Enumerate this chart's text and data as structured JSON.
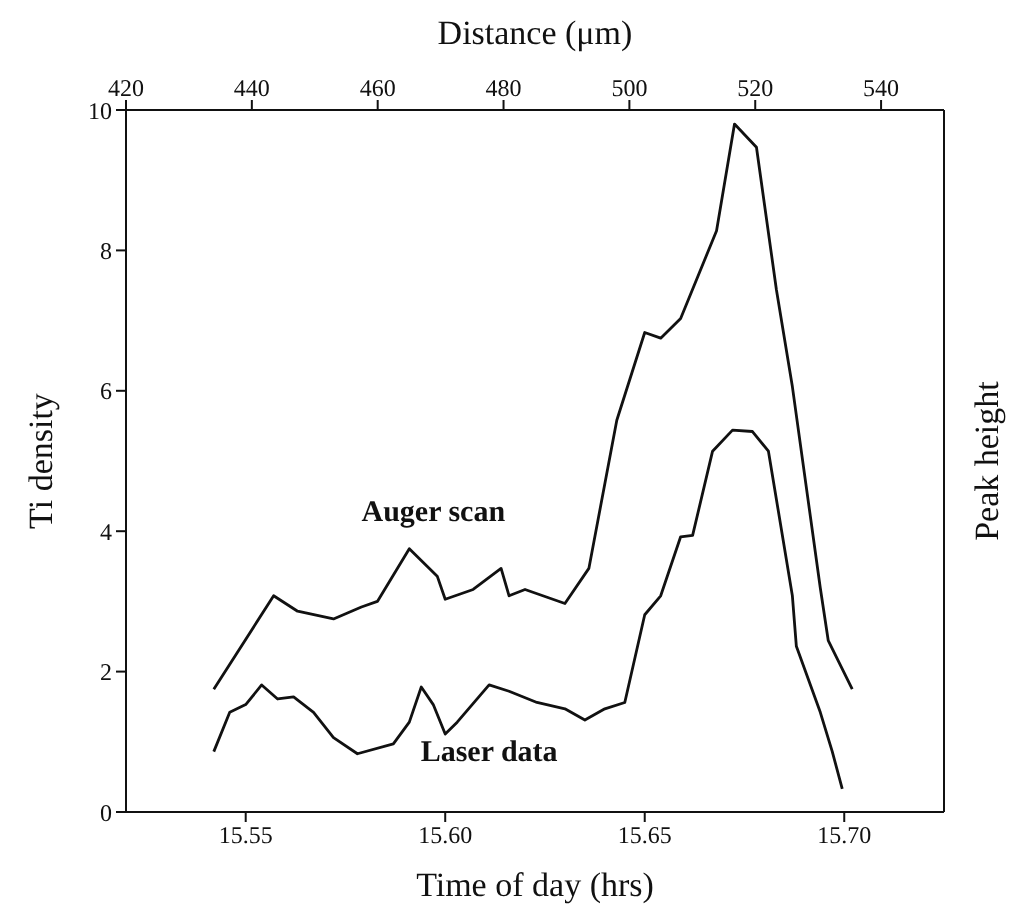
{
  "chart_data": {
    "type": "line",
    "xlabel": "Time of day (hrs)",
    "x2label": "Distance (μm)",
    "ylabel": "Ti density",
    "y2label": "Peak height",
    "xlim": [
      15.52,
      15.725
    ],
    "xticks": [
      15.55,
      {
        "value": 15.6,
        "label": "15.60"
      },
      15.65,
      {
        "value": 15.7,
        "label": "15.70"
      }
    ],
    "x2lim": [
      420,
      550
    ],
    "x2ticks": [
      420,
      440,
      460,
      480,
      500,
      520,
      540
    ],
    "ylim": [
      0,
      10
    ],
    "yticks": [
      0,
      2,
      4,
      6,
      8,
      10
    ],
    "grid": false,
    "legend": false,
    "marker": "none",
    "line_style": "solid",
    "series": [
      {
        "name": "Auger scan",
        "color": "#111111",
        "x": [
          15.542,
          15.557,
          15.563,
          15.572,
          15.579,
          15.583,
          15.591,
          15.598,
          15.6,
          15.607,
          15.614,
          15.616,
          15.62,
          15.63,
          15.636,
          15.643,
          15.65,
          15.654,
          15.659,
          15.668,
          15.6725,
          15.678,
          15.683,
          15.687,
          15.694,
          15.696,
          15.702
        ],
        "values": [
          1.75,
          3.08,
          2.86,
          2.75,
          2.92,
          3.0,
          3.75,
          3.36,
          3.03,
          3.17,
          3.47,
          3.08,
          3.17,
          2.97,
          3.47,
          5.58,
          6.83,
          6.75,
          7.03,
          8.28,
          9.8,
          9.47,
          7.44,
          6.06,
          3.19,
          2.44,
          1.75
        ]
      },
      {
        "name": "Laser data",
        "color": "#111111",
        "x": [
          15.542,
          15.546,
          15.55,
          15.554,
          15.558,
          15.562,
          15.567,
          15.572,
          15.578,
          15.587,
          15.591,
          15.594,
          15.597,
          15.6,
          15.603,
          15.611,
          15.616,
          15.623,
          15.63,
          15.635,
          15.64,
          15.645,
          15.65,
          15.654,
          15.659,
          15.662,
          15.667,
          15.672,
          15.677,
          15.681,
          15.687,
          15.688,
          15.694,
          15.697,
          15.6995
        ],
        "values": [
          0.86,
          1.42,
          1.53,
          1.81,
          1.61,
          1.64,
          1.42,
          1.06,
          0.83,
          0.97,
          1.28,
          1.78,
          1.53,
          1.11,
          1.28,
          1.81,
          1.72,
          1.56,
          1.47,
          1.31,
          1.47,
          1.56,
          2.81,
          3.08,
          3.92,
          3.94,
          5.14,
          5.44,
          5.42,
          5.14,
          3.08,
          2.36,
          1.42,
          0.86,
          0.33
        ]
      }
    ]
  }
}
